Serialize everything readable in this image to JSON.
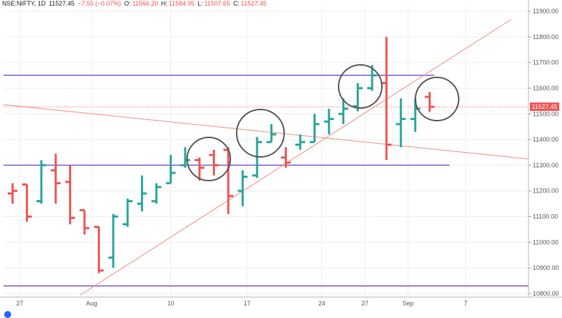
{
  "header": {
    "symbol": "NSE:NIFTY, 1D",
    "last": "11527.45",
    "change": "−7.55 (−0.07%)",
    "open_label": "O:",
    "open": "11566.20",
    "high_label": "H:",
    "high": "11584.95",
    "low_label": "L:",
    "low": "11507.65",
    "close_label": "C:",
    "close": "11527.45"
  },
  "price_tag": "11527.45",
  "colors": {
    "up": "#26a69a",
    "down": "#ef5350",
    "horizontal": "#7e57c2",
    "trend": "#ef8a80",
    "circle": "#555555",
    "grid": "#eeeeee"
  },
  "chart_data": {
    "type": "ohlc",
    "y_ticks": [
      "11900.00",
      "11800.00",
      "11700.00",
      "11600.00",
      "11500.00",
      "11400.00",
      "11300.00",
      "11200.00",
      "11100.00",
      "11000.00",
      "10900.00",
      "10800.00"
    ],
    "ylim": [
      10780,
      11920
    ],
    "x_ticks": [
      "27",
      "Aug",
      "10",
      "17",
      "24",
      "27",
      "Sep",
      "7"
    ],
    "bars": [
      {
        "o": 11190,
        "h": 11230,
        "l": 11150,
        "c": 11200,
        "dir": "down"
      },
      {
        "o": 11225,
        "h": 11225,
        "l": 11080,
        "c": 11100,
        "dir": "down"
      },
      {
        "o": 11160,
        "h": 11320,
        "l": 11150,
        "c": 11300,
        "dir": "up"
      },
      {
        "o": 11280,
        "h": 11345,
        "l": 11150,
        "c": 11230,
        "dir": "down"
      },
      {
        "o": 11235,
        "h": 11300,
        "l": 11070,
        "c": 11095,
        "dir": "down"
      },
      {
        "o": 11125,
        "h": 11125,
        "l": 11030,
        "c": 11055,
        "dir": "down"
      },
      {
        "o": 11060,
        "h": 11060,
        "l": 10880,
        "c": 10890,
        "dir": "down"
      },
      {
        "o": 10940,
        "h": 11110,
        "l": 10900,
        "c": 11100,
        "dir": "up"
      },
      {
        "o": 11070,
        "h": 11170,
        "l": 11060,
        "c": 11160,
        "dir": "up"
      },
      {
        "o": 11150,
        "h": 11260,
        "l": 11120,
        "c": 11190,
        "dir": "up"
      },
      {
        "o": 11160,
        "h": 11230,
        "l": 11150,
        "c": 11215,
        "dir": "up"
      },
      {
        "o": 11230,
        "h": 11340,
        "l": 11230,
        "c": 11270,
        "dir": "up"
      },
      {
        "o": 11300,
        "h": 11370,
        "l": 11290,
        "c": 11320,
        "dir": "up"
      },
      {
        "o": 11320,
        "h": 11330,
        "l": 11240,
        "c": 11290,
        "dir": "down"
      },
      {
        "o": 11340,
        "h": 11360,
        "l": 11260,
        "c": 11300,
        "dir": "down"
      },
      {
        "o": 11360,
        "h": 11370,
        "l": 11110,
        "c": 11180,
        "dir": "down"
      },
      {
        "o": 11200,
        "h": 11280,
        "l": 11140,
        "c": 11255,
        "dir": "up"
      },
      {
        "o": 11260,
        "h": 11410,
        "l": 11250,
        "c": 11390,
        "dir": "up"
      },
      {
        "o": 11390,
        "h": 11460,
        "l": 11390,
        "c": 11420,
        "dir": "up"
      },
      {
        "o": 11330,
        "h": 11370,
        "l": 11290,
        "c": 11310,
        "dir": "down"
      },
      {
        "o": 11380,
        "h": 11420,
        "l": 11360,
        "c": 11390,
        "dir": "up"
      },
      {
        "o": 11390,
        "h": 11500,
        "l": 11390,
        "c": 11460,
        "dir": "up"
      },
      {
        "o": 11470,
        "h": 11520,
        "l": 11420,
        "c": 11480,
        "dir": "up"
      },
      {
        "o": 11500,
        "h": 11560,
        "l": 11460,
        "c": 11520,
        "dir": "up"
      },
      {
        "o": 11530,
        "h": 11620,
        "l": 11510,
        "c": 11600,
        "dir": "up"
      },
      {
        "o": 11600,
        "h": 11690,
        "l": 11590,
        "c": 11650,
        "dir": "up"
      },
      {
        "o": 11620,
        "h": 11800,
        "l": 11320,
        "c": 11380,
        "dir": "down"
      },
      {
        "o": 11460,
        "h": 11560,
        "l": 11370,
        "c": 11480,
        "dir": "up"
      },
      {
        "o": 11480,
        "h": 11560,
        "l": 11430,
        "c": 11520,
        "dir": "up"
      },
      {
        "o": 11566.2,
        "h": 11584.95,
        "l": 11507.65,
        "c": 11527.45,
        "dir": "down"
      }
    ],
    "horizontal_lines": [
      11650,
      11300,
      10830
    ],
    "grid": true
  }
}
